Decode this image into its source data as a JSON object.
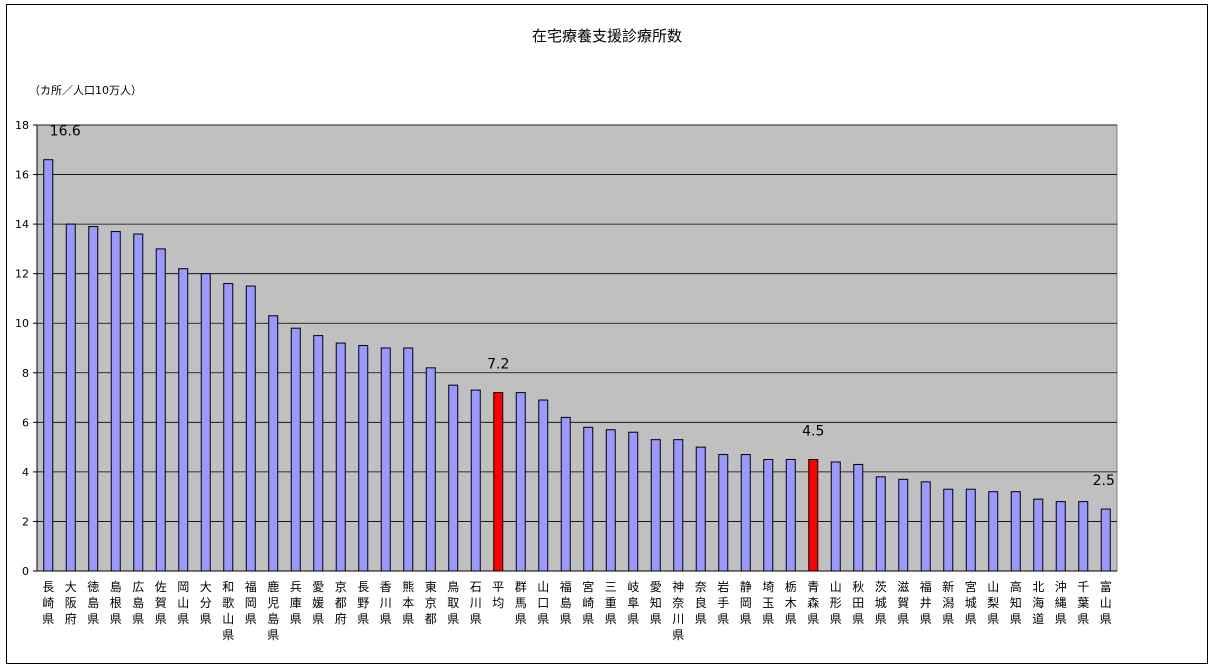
{
  "chart_data": {
    "type": "bar",
    "title": "在宅療養支援診療所数",
    "ylabel": "（カ所／人口10万人）",
    "xlabel": "",
    "ylim": [
      0,
      18
    ],
    "yticks": [
      0,
      2,
      4,
      6,
      8,
      10,
      12,
      14,
      16,
      18
    ],
    "grid": true,
    "plot_background": "#c0c0c0",
    "bar_color": "#9999ff",
    "highlight_color": "#ff0000",
    "categories": [
      "長崎県",
      "大阪府",
      "徳島県",
      "島根県",
      "広島県",
      "佐賀県",
      "岡山県",
      "大分県",
      "和歌山県",
      "福岡県",
      "鹿児島県",
      "兵庫県",
      "愛媛県",
      "京都府",
      "長野県",
      "香川県",
      "熊本県",
      "東京都",
      "鳥取県",
      "石川県",
      "平均",
      "群馬県",
      "山口県",
      "福島県",
      "宮崎県",
      "三重県",
      "岐阜県",
      "愛知県",
      "神奈川県",
      "奈良県",
      "岩手県",
      "静岡県",
      "埼玉県",
      "栃木県",
      "青森県",
      "山形県",
      "秋田県",
      "茨城県",
      "滋賀県",
      "福井県",
      "新潟県",
      "宮城県",
      "山梨県",
      "高知県",
      "北海道",
      "沖縄県",
      "千葉県",
      "富山県"
    ],
    "values": [
      16.6,
      14.0,
      13.9,
      13.7,
      13.6,
      13.0,
      12.2,
      12.0,
      11.6,
      11.5,
      10.3,
      9.8,
      9.5,
      9.2,
      9.1,
      9.0,
      9.0,
      8.2,
      7.5,
      7.3,
      7.2,
      7.2,
      6.9,
      6.2,
      5.8,
      5.7,
      5.6,
      5.3,
      5.3,
      5.0,
      4.7,
      4.7,
      4.5,
      4.5,
      4.5,
      4.4,
      4.3,
      3.8,
      3.7,
      3.6,
      3.3,
      3.3,
      3.2,
      3.2,
      2.9,
      2.8,
      2.8,
      2.5
    ],
    "highlighted": [
      "平均",
      "青森県"
    ],
    "data_labels": [
      {
        "category": "長崎県",
        "text": "16.6"
      },
      {
        "category": "平均",
        "text": "7.2"
      },
      {
        "category": "青森県",
        "text": "4.5"
      },
      {
        "category": "富山県",
        "text": "2.5"
      }
    ]
  }
}
